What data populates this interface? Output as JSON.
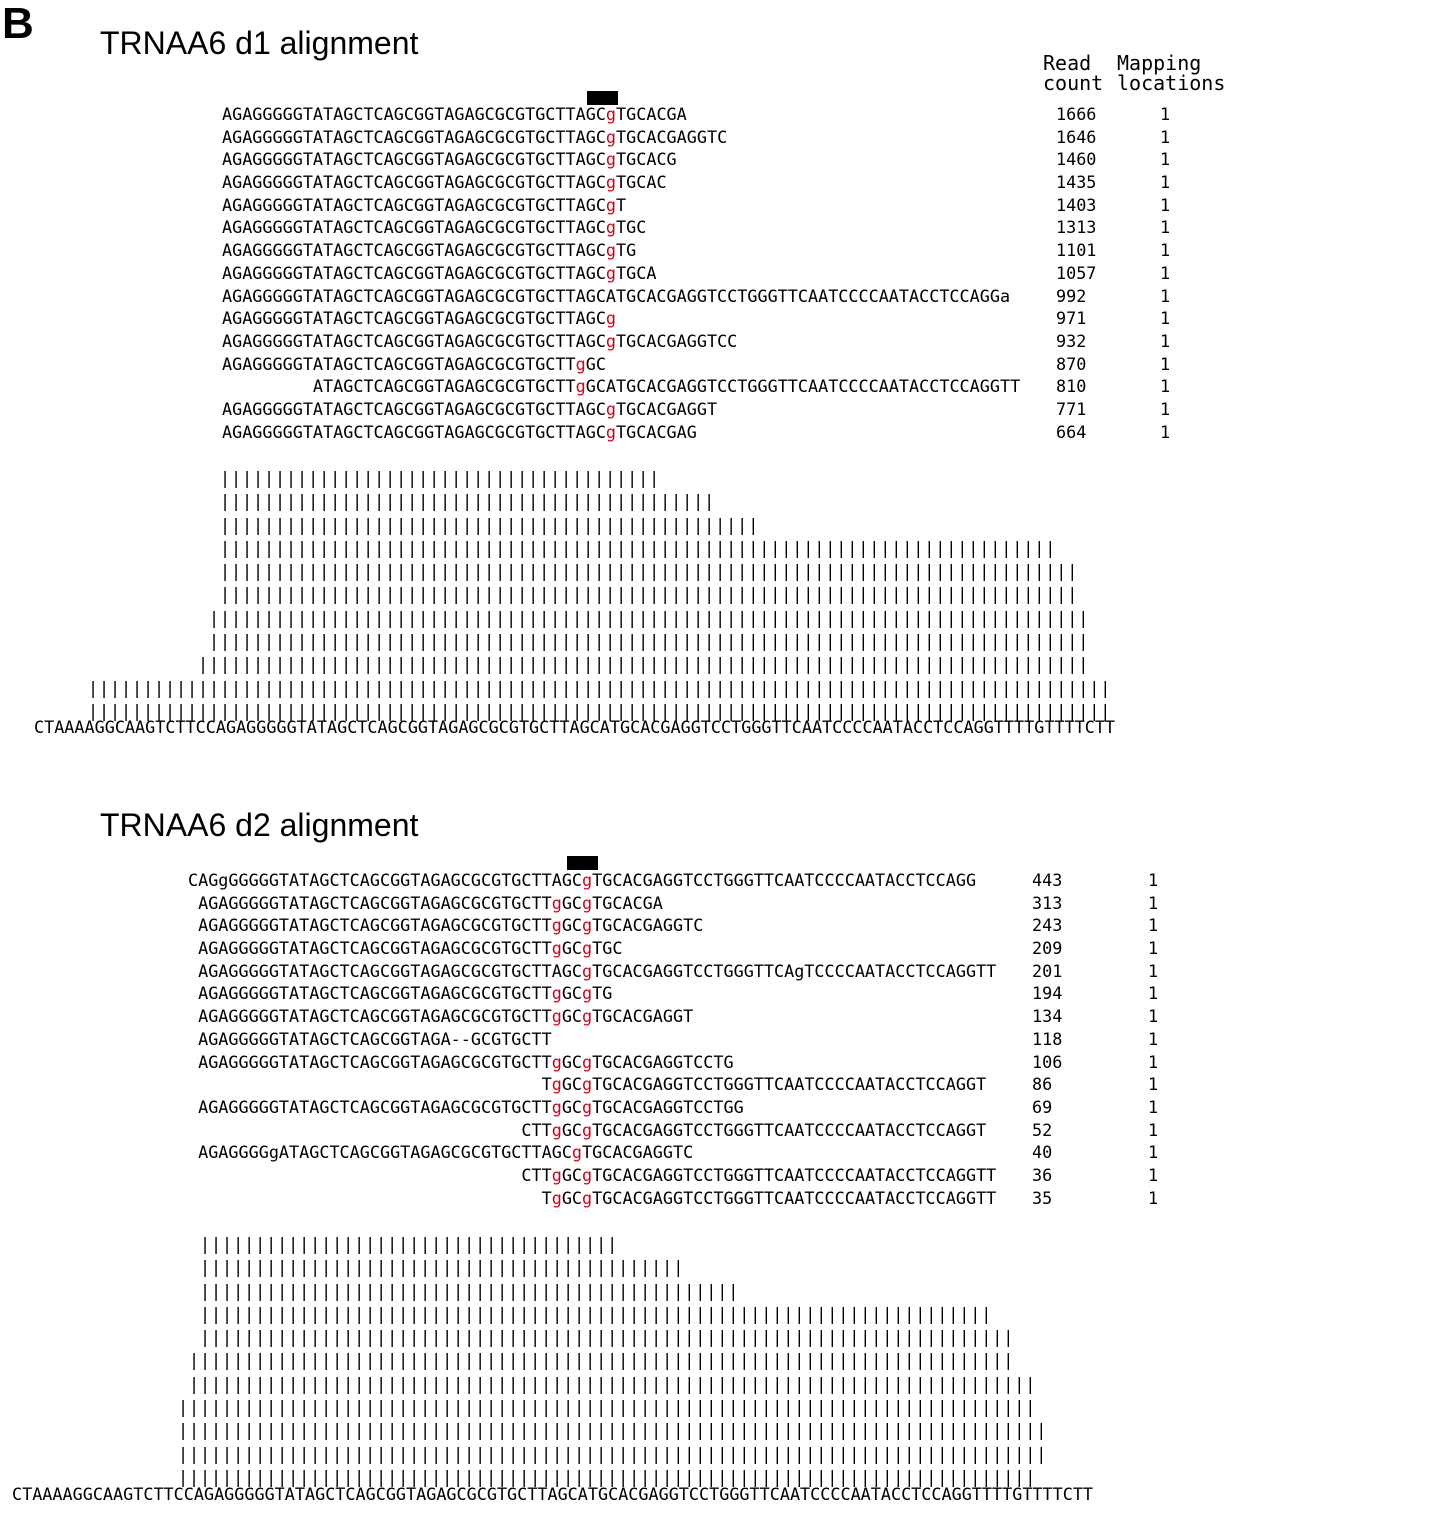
{
  "panel_label": "B",
  "mismatch_color": "#d0021b",
  "d1": {
    "title": "TRNAA6 d1 alignment",
    "header_read": "Read\ncount",
    "header_map": "Mapping\nlocations",
    "reads": [
      {
        "seq": "AGAGGGGGTATAGCTCAGCGGTAGAGCGCGTGCTTAGC[g]TGCACGA",
        "count": "1666",
        "map": "1"
      },
      {
        "seq": "AGAGGGGGTATAGCTCAGCGGTAGAGCGCGTGCTTAGC[g]TGCACGAGGTC",
        "count": "1646",
        "map": "1"
      },
      {
        "seq": "AGAGGGGGTATAGCTCAGCGGTAGAGCGCGTGCTTAGC[g]TGCACG",
        "count": "1460",
        "map": "1"
      },
      {
        "seq": "AGAGGGGGTATAGCTCAGCGGTAGAGCGCGTGCTTAGC[g]TGCAC",
        "count": "1435",
        "map": "1"
      },
      {
        "seq": "AGAGGGGGTATAGCTCAGCGGTAGAGCGCGTGCTTAGC[g]T",
        "count": "1403",
        "map": "1"
      },
      {
        "seq": "AGAGGGGGTATAGCTCAGCGGTAGAGCGCGTGCTTAGC[g]TGC",
        "count": "1313",
        "map": "1"
      },
      {
        "seq": "AGAGGGGGTATAGCTCAGCGGTAGAGCGCGTGCTTAGC[g]TG",
        "count": "1101",
        "map": "1"
      },
      {
        "seq": "AGAGGGGGTATAGCTCAGCGGTAGAGCGCGTGCTTAGC[g]TGCA",
        "count": "1057",
        "map": "1"
      },
      {
        "seq": "AGAGGGGGTATAGCTCAGCGGTAGAGCGCGTGCTTAGCATGCACGAGGTCCTGGGTTCAATCCCCAATACCTCCAGGa",
        "count": "992",
        "map": "1"
      },
      {
        "seq": "AGAGGGGGTATAGCTCAGCGGTAGAGCGCGTGCTTAGC[g]",
        "count": "971",
        "map": "1"
      },
      {
        "seq": "AGAGGGGGTATAGCTCAGCGGTAGAGCGCGTGCTTAGC[g]TGCACGAGGTCC",
        "count": "932",
        "map": "1"
      },
      {
        "seq": "AGAGGGGGTATAGCTCAGCGGTAGAGCGCGTGCTT[g]GC",
        "count": "870",
        "map": "1"
      },
      {
        "seq": "         ATAGCTCAGCGGTAGAGCGCGTGCTT[g]GCATGCACGAGGTCCTGGGTTCAATCCCCAATACCTCCAGGTT",
        "count": "810",
        "map": "1"
      },
      {
        "seq": "AGAGGGGGTATAGCTCAGCGGTAGAGCGCGTGCTTAGC[g]TGCACGAGGT",
        "count": "771",
        "map": "1"
      },
      {
        "seq": "AGAGGGGGTATAGCTCAGCGGTAGAGCGCGTGCTTAGC[g]TGCACGAG",
        "count": "664",
        "map": "1"
      }
    ],
    "coverage": [
      {
        "indent": 12,
        "len": 40
      },
      {
        "indent": 12,
        "len": 45
      },
      {
        "indent": 12,
        "len": 49
      },
      {
        "indent": 12,
        "len": 76
      },
      {
        "indent": 12,
        "len": 78
      },
      {
        "indent": 12,
        "len": 78
      },
      {
        "indent": 11,
        "len": 80
      },
      {
        "indent": 11,
        "len": 80
      },
      {
        "indent": 10,
        "len": 81
      },
      {
        "indent": 0,
        "len": 93
      },
      {
        "indent": 0,
        "len": 93
      }
    ],
    "reference": "CTAAAAGGCAAGTCTTCCAGAGGGGGTATAGCTCAGCGGTAGAGCGCGTGCTTAGCATGCACGAGGTCCTGGGTTCAATCCCCAATACCTCCAGGTTTTGTTTTCTT"
  },
  "d2": {
    "title": "TRNAA6 d2 alignment",
    "reads": [
      {
        "seq": "CAGgGGGGGTATAGCTCAGCGGTAGAGCGCGTGCTTAGC[g]TGCACGAGGTCCTGGGTTCAATCCCCAATACCTCCAGG",
        "count": "443",
        "map": "1"
      },
      {
        "seq": " AGAGGGGGTATAGCTCAGCGGTAGAGCGCGTGCTT[g]GC[g]TGCACGA",
        "count": "313",
        "map": "1"
      },
      {
        "seq": " AGAGGGGGTATAGCTCAGCGGTAGAGCGCGTGCTT[g]GC[g]TGCACGAGGTC",
        "count": "243",
        "map": "1"
      },
      {
        "seq": " AGAGGGGGTATAGCTCAGCGGTAGAGCGCGTGCTT[g]GC[g]TGC",
        "count": "209",
        "map": "1"
      },
      {
        "seq": " AGAGGGGGTATAGCTCAGCGGTAGAGCGCGTGCTTAGC[g]TGCACGAGGTCCTGGGTTCAgTCCCCAATACCTCCAGGTT",
        "count": "201",
        "map": "1"
      },
      {
        "seq": " AGAGGGGGTATAGCTCAGCGGTAGAGCGCGTGCTT[g]GC[g]TG",
        "count": "194",
        "map": "1"
      },
      {
        "seq": " AGAGGGGGTATAGCTCAGCGGTAGAGCGCGTGCTT[g]GC[g]TGCACGAGGT",
        "count": "134",
        "map": "1"
      },
      {
        "seq": " AGAGGGGGTATAGCTCAGCGGTAGA--GCGTGCTT",
        "count": "118",
        "map": "1"
      },
      {
        "seq": " AGAGGGGGTATAGCTCAGCGGTAGAGCGCGTGCTT[g]GC[g]TGCACGAGGTCCTG",
        "count": "106",
        "map": "1"
      },
      {
        "seq": "                                   T[g]GC[g]TGCACGAGGTCCTGGGTTCAATCCCCAATACCTCCAGGT",
        "count": "86",
        "map": "1"
      },
      {
        "seq": " AGAGGGGGTATAGCTCAGCGGTAGAGCGCGTGCTT[g]GC[g]TGCACGAGGTCCTGG",
        "count": "69",
        "map": "1"
      },
      {
        "seq": "                                 CTT[g]GC[g]TGCACGAGGTCCTGGGTTCAATCCCCAATACCTCCAGGT",
        "count": "52",
        "map": "1"
      },
      {
        "seq": " AGAGGGGgATAGCTCAGCGGTAGAGCGCGTGCTTAGC[g]TGCACGAGGTC",
        "count": "40",
        "map": "1"
      },
      {
        "seq": "                                 CTT[g]GC[g]TGCACGAGGTCCTGGGTTCAATCCCCAATACCTCCAGGTT",
        "count": "36",
        "map": "1"
      },
      {
        "seq": "                                   T[g]GC[g]TGCACGAGGTCCTGGGTTCAATCCCCAATACCTCCAGGTT",
        "count": "35",
        "map": "1"
      }
    ],
    "coverage": [
      {
        "indent": 17,
        "len": 38
      },
      {
        "indent": 17,
        "len": 44
      },
      {
        "indent": 17,
        "len": 49
      },
      {
        "indent": 17,
        "len": 72
      },
      {
        "indent": 17,
        "len": 74
      },
      {
        "indent": 16,
        "len": 75
      },
      {
        "indent": 16,
        "len": 77
      },
      {
        "indent": 15,
        "len": 78
      },
      {
        "indent": 15,
        "len": 79
      },
      {
        "indent": 15,
        "len": 79
      },
      {
        "indent": 15,
        "len": 78
      }
    ],
    "reference": "CTAAAAGGCAAGTCTTCCAGAGGGGGTATAGCTCAGCGGTAGAGCGCGTGCTTAGCATGCACGAGGTCCTGGGTTCAATCCCCAATACCTCCAGGTTTTGTTTTCTT"
  }
}
